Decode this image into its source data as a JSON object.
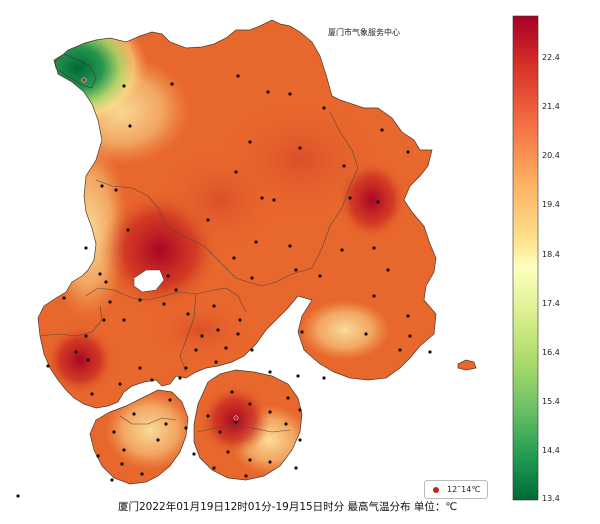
{
  "title": "厦门市气象服务中心",
  "footer": "厦门2022年01月19日12时01分-19月15日时分  最高气温分布  单位：℃",
  "legend": {
    "label": "12˜14℃",
    "color": "#c0271d"
  },
  "colorbar": {
    "ticks": [
      "22.4",
      "21.4",
      "20.4",
      "19.4",
      "18.4",
      "17.4",
      "16.4",
      "15.4",
      "14.4",
      "13.4"
    ],
    "colors": [
      "#a50026",
      "#d73027",
      "#f46d43",
      "#fdae61",
      "#fee08b",
      "#ffffbf",
      "#d9ef8b",
      "#a6d96a",
      "#66bd63",
      "#1a9850",
      "#006837"
    ]
  },
  "palette": {
    "land": "#e8672d",
    "hot": "#b81d1c",
    "warm": "#f2a65a",
    "cool": "#f7e39a",
    "cold": "#2e8b3b",
    "border": "#5a4a3a",
    "station": "#111111"
  }
}
